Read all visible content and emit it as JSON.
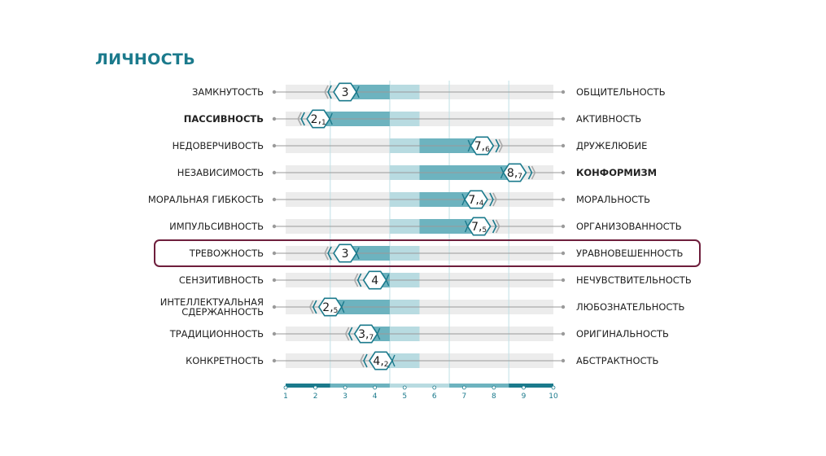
{
  "title": "ЛИЧНОСТЬ",
  "colors": {
    "accent": "#1b7a8c",
    "band_dark": "#6db3bf",
    "band_light": "#b8dbe1",
    "track": "#ececec",
    "highlight_frame": "#6e1e3c"
  },
  "chart_data": {
    "type": "bipolar-scale",
    "xlim": [
      1,
      10
    ],
    "ticks": [
      1,
      2,
      3,
      4,
      5,
      6,
      7,
      8,
      9,
      10
    ],
    "norm_range": [
      4.5,
      5.5
    ],
    "highlighted_row": 6,
    "rows": [
      {
        "left": "ЗАМКНУТОСТЬ",
        "right": "ОБЩИТЕЛЬНОСТЬ",
        "value": 3,
        "int": "3",
        "dec": "",
        "bold": ""
      },
      {
        "left": "ПАССИВНОСТЬ",
        "right": "АКТИВНОСТЬ",
        "value": 2.1,
        "int": "2,",
        "dec": "1",
        "bold": "left"
      },
      {
        "left": "НЕДОВЕРЧИВОСТЬ",
        "right": "ДРУЖЕЛЮБИЕ",
        "value": 7.6,
        "int": "7,",
        "dec": "6",
        "bold": ""
      },
      {
        "left": "НЕЗАВИСИМОСТЬ",
        "right": "КОНФОРМИЗМ",
        "value": 8.7,
        "int": "8,",
        "dec": "7",
        "bold": "right"
      },
      {
        "left": "МОРАЛЬНАЯ ГИБКОСТЬ",
        "right": "МОРАЛЬНОСТЬ",
        "value": 7.4,
        "int": "7,",
        "dec": "4",
        "bold": ""
      },
      {
        "left": "ИМПУЛЬСИВНОСТЬ",
        "right": "ОРГАНИЗОВАННОСТЬ",
        "value": 7.5,
        "int": "7,",
        "dec": "5",
        "bold": ""
      },
      {
        "left": "ТРЕВОЖНОСТЬ",
        "right": "УРАВНОВЕШЕННОСТЬ",
        "value": 3,
        "int": "3",
        "dec": "",
        "bold": ""
      },
      {
        "left": "СЕНЗИТИВНОСТЬ",
        "right": "НЕЧУВСТВИТЕЛЬНОСТЬ",
        "value": 4,
        "int": "4",
        "dec": "",
        "bold": ""
      },
      {
        "left": "ИНТЕЛЛЕКТУАЛЬНАЯ СДЕРЖАННОСТЬ",
        "left_lines": [
          "ИНТЕЛЛЕКТУАЛЬНАЯ",
          "СДЕРЖАННОСТЬ"
        ],
        "right": "ЛЮБОЗНАТЕЛЬНОСТЬ",
        "value": 2.5,
        "int": "2,",
        "dec": "5",
        "bold": ""
      },
      {
        "left": "ТРАДИЦИОННОСТЬ",
        "right": "ОРИГИНАЛЬНОСТЬ",
        "value": 3.7,
        "int": "3,",
        "dec": "7",
        "bold": ""
      },
      {
        "left": "КОНКРЕТНОСТЬ",
        "right": "АБСТРАКТНОСТЬ",
        "value": 4.2,
        "int": "4,",
        "dec": "2",
        "bold": ""
      }
    ]
  }
}
